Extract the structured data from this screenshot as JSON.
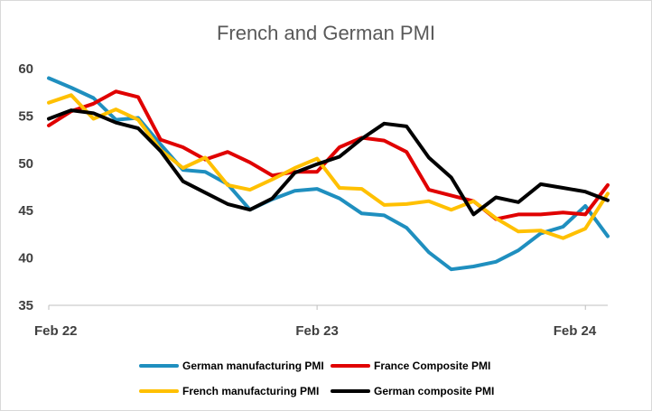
{
  "chart_data": {
    "type": "line",
    "title": "French and German PMI",
    "xlabel": "",
    "ylabel": "",
    "ylim": [
      35,
      60
    ],
    "yticks": [
      35,
      40,
      45,
      50,
      55,
      60
    ],
    "x_ticks": [
      {
        "label": "Feb 22",
        "index": 0
      },
      {
        "label": "Feb 23",
        "index": 12
      },
      {
        "label": "Feb 24",
        "index": 24
      }
    ],
    "grid": false,
    "legend_position": "bottom",
    "series": [
      {
        "name": "German manufacturing PMI",
        "color": "#1f8fbf",
        "values": [
          59.0,
          58.0,
          56.9,
          54.6,
          54.8,
          52.0,
          49.3,
          49.1,
          47.8,
          45.1,
          46.2,
          47.1,
          47.3,
          46.3,
          44.7,
          44.5,
          43.2,
          40.6,
          38.8,
          39.1,
          39.6,
          40.8,
          42.6,
          43.3,
          45.5,
          42.3
        ]
      },
      {
        "name": "France Composite PMI",
        "color": "#e00000",
        "values": [
          54.0,
          55.5,
          56.3,
          57.6,
          57.0,
          52.5,
          51.7,
          50.4,
          51.2,
          50.1,
          48.7,
          49.1,
          49.1,
          51.7,
          52.7,
          52.4,
          51.2,
          47.2,
          46.6,
          46.0,
          44.1,
          44.6,
          44.6,
          44.8,
          44.6,
          47.7
        ]
      },
      {
        "name": "French manufacturing PMI",
        "color": "#ffc000",
        "values": [
          56.4,
          57.2,
          54.7,
          55.7,
          54.6,
          51.4,
          49.5,
          50.6,
          47.7,
          47.2,
          48.3,
          49.5,
          50.5,
          47.4,
          47.3,
          45.6,
          45.7,
          46.0,
          45.1,
          46.0,
          44.2,
          42.8,
          42.9,
          42.1,
          43.1,
          46.8
        ]
      },
      {
        "name": "German composite PMI",
        "color": "#000000",
        "values": [
          54.7,
          55.6,
          55.3,
          54.3,
          53.7,
          51.3,
          48.1,
          46.9,
          45.7,
          45.1,
          46.3,
          49.0,
          49.9,
          50.7,
          52.6,
          54.2,
          53.9,
          50.6,
          48.5,
          44.6,
          46.4,
          45.9,
          47.8,
          47.4,
          47.0,
          46.1
        ]
      }
    ]
  }
}
